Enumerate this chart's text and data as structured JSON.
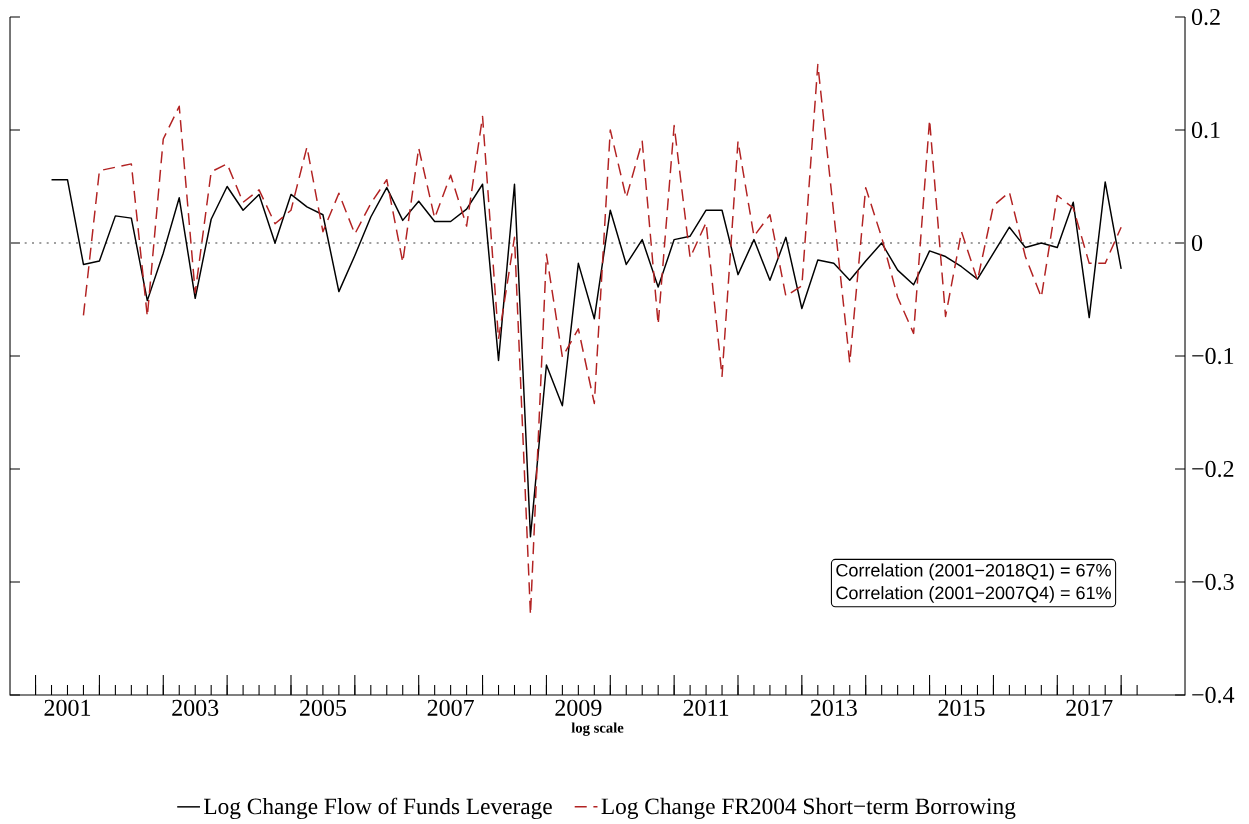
{
  "chart_data": {
    "type": "line",
    "xlabel": "log scale",
    "x": [
      2001.25,
      2001.5,
      2001.75,
      2002.0,
      2002.25,
      2002.5,
      2002.75,
      2003.0,
      2003.25,
      2003.5,
      2003.75,
      2004.0,
      2004.25,
      2004.5,
      2004.75,
      2005.0,
      2005.25,
      2005.5,
      2005.75,
      2006.0,
      2006.25,
      2006.5,
      2006.75,
      2007.0,
      2007.25,
      2007.5,
      2007.75,
      2008.0,
      2008.25,
      2008.5,
      2008.75,
      2009.0,
      2009.25,
      2009.5,
      2009.75,
      2010.0,
      2010.25,
      2010.5,
      2010.75,
      2011.0,
      2011.25,
      2011.5,
      2011.75,
      2012.0,
      2012.25,
      2012.5,
      2012.75,
      2013.0,
      2013.25,
      2013.5,
      2013.75,
      2014.0,
      2014.25,
      2014.5,
      2014.75,
      2015.0,
      2015.25,
      2015.5,
      2015.75,
      2016.0,
      2016.25,
      2016.5,
      2016.75,
      2017.0,
      2017.25,
      2017.5,
      2017.75,
      2018.0
    ],
    "series": [
      {
        "name": "Log Change Flow of Funds Leverage",
        "color": "#000000",
        "line_style": "solid",
        "values": [
          0.056,
          0.056,
          -0.019,
          -0.016,
          0.024,
          0.022,
          -0.051,
          -0.009,
          0.04,
          -0.049,
          0.021,
          0.05,
          0.029,
          0.043,
          0.0,
          0.043,
          0.032,
          0.025,
          -0.043,
          -0.011,
          0.023,
          0.049,
          0.02,
          0.037,
          0.019,
          0.019,
          0.03,
          0.052,
          -0.104,
          0.052,
          -0.26,
          -0.108,
          -0.144,
          -0.018,
          -0.067,
          0.029,
          -0.019,
          0.003,
          -0.039,
          0.003,
          0.006,
          0.029,
          0.029,
          -0.028,
          0.003,
          -0.033,
          0.005,
          -0.058,
          -0.015,
          -0.018,
          -0.033,
          -0.016,
          0.0,
          -0.024,
          -0.037,
          -0.007,
          -0.012,
          -0.021,
          -0.032,
          -0.009,
          0.014,
          -0.004,
          0.0,
          -0.004,
          0.036,
          -0.066,
          0.054,
          -0.023
        ]
      },
      {
        "name": "Log Change FR2004 Short−term Borrowing",
        "color": "#b22222",
        "line_style": "dashed",
        "values": [
          null,
          null,
          -0.064,
          0.064,
          0.067,
          0.07,
          -0.065,
          0.092,
          0.121,
          -0.044,
          0.063,
          0.07,
          0.036,
          0.047,
          0.017,
          0.029,
          0.085,
          0.01,
          0.044,
          0.008,
          0.035,
          0.056,
          -0.017,
          0.084,
          0.022,
          0.06,
          0.015,
          0.112,
          -0.085,
          0.005,
          -0.329,
          -0.01,
          -0.101,
          -0.076,
          -0.142,
          0.1,
          0.04,
          0.09,
          -0.072,
          0.104,
          -0.013,
          0.018,
          -0.118,
          0.09,
          0.006,
          0.025,
          -0.047,
          -0.038,
          0.158,
          0.026,
          -0.106,
          0.049,
          0.005,
          -0.048,
          -0.08,
          0.109,
          -0.065,
          0.01,
          -0.033,
          0.033,
          0.045,
          -0.012,
          -0.048,
          0.042,
          0.031,
          -0.018,
          -0.018,
          0.014
        ]
      }
    ],
    "xlim": [
      2000.6,
      2019.0
    ],
    "xticks": [
      {
        "value": 2001.0,
        "label": null
      },
      {
        "value": 2001.25,
        "label": null
      },
      {
        "value": 2001.5,
        "label": "2001"
      },
      {
        "value": 2001.75,
        "label": null
      },
      {
        "value": 2002.0,
        "label": null
      },
      {
        "value": 2002.25,
        "label": null
      },
      {
        "value": 2002.5,
        "label": null
      },
      {
        "value": 2002.75,
        "label": null
      },
      {
        "value": 2003.0,
        "label": null
      },
      {
        "value": 2003.25,
        "label": null
      },
      {
        "value": 2003.5,
        "label": "2003"
      },
      {
        "value": 2003.75,
        "label": null
      },
      {
        "value": 2004.0,
        "label": null
      },
      {
        "value": 2004.25,
        "label": null
      },
      {
        "value": 2004.5,
        "label": null
      },
      {
        "value": 2004.75,
        "label": null
      },
      {
        "value": 2005.0,
        "label": null
      },
      {
        "value": 2005.25,
        "label": null
      },
      {
        "value": 2005.5,
        "label": "2005"
      },
      {
        "value": 2005.75,
        "label": null
      },
      {
        "value": 2006.0,
        "label": null
      },
      {
        "value": 2006.25,
        "label": null
      },
      {
        "value": 2006.5,
        "label": null
      },
      {
        "value": 2006.75,
        "label": null
      },
      {
        "value": 2007.0,
        "label": null
      },
      {
        "value": 2007.25,
        "label": null
      },
      {
        "value": 2007.5,
        "label": "2007"
      },
      {
        "value": 2007.75,
        "label": null
      },
      {
        "value": 2008.0,
        "label": null
      },
      {
        "value": 2008.25,
        "label": null
      },
      {
        "value": 2008.5,
        "label": null
      },
      {
        "value": 2008.75,
        "label": null
      },
      {
        "value": 2009.0,
        "label": null
      },
      {
        "value": 2009.25,
        "label": null
      },
      {
        "value": 2009.5,
        "label": "2009"
      },
      {
        "value": 2009.75,
        "label": null
      },
      {
        "value": 2010.0,
        "label": null
      },
      {
        "value": 2010.25,
        "label": null
      },
      {
        "value": 2010.5,
        "label": null
      },
      {
        "value": 2010.75,
        "label": null
      },
      {
        "value": 2011.0,
        "label": null
      },
      {
        "value": 2011.25,
        "label": null
      },
      {
        "value": 2011.5,
        "label": "2011"
      },
      {
        "value": 2011.75,
        "label": null
      },
      {
        "value": 2012.0,
        "label": null
      },
      {
        "value": 2012.25,
        "label": null
      },
      {
        "value": 2012.5,
        "label": null
      },
      {
        "value": 2012.75,
        "label": null
      },
      {
        "value": 2013.0,
        "label": null
      },
      {
        "value": 2013.25,
        "label": null
      },
      {
        "value": 2013.5,
        "label": "2013"
      },
      {
        "value": 2013.75,
        "label": null
      },
      {
        "value": 2014.0,
        "label": null
      },
      {
        "value": 2014.25,
        "label": null
      },
      {
        "value": 2014.5,
        "label": null
      },
      {
        "value": 2014.75,
        "label": null
      },
      {
        "value": 2015.0,
        "label": null
      },
      {
        "value": 2015.25,
        "label": null
      },
      {
        "value": 2015.5,
        "label": "2015"
      },
      {
        "value": 2015.75,
        "label": null
      },
      {
        "value": 2016.0,
        "label": null
      },
      {
        "value": 2016.25,
        "label": null
      },
      {
        "value": 2016.5,
        "label": null
      },
      {
        "value": 2016.75,
        "label": null
      },
      {
        "value": 2017.0,
        "label": null
      },
      {
        "value": 2017.25,
        "label": null
      },
      {
        "value": 2017.5,
        "label": "2017"
      },
      {
        "value": 2017.75,
        "label": null
      },
      {
        "value": 2018.0,
        "label": null
      },
      {
        "value": 2018.25,
        "label": null
      }
    ],
    "ylim": [
      -0.4,
      0.2
    ],
    "yticks": [
      {
        "value": -0.4,
        "label": "−0.4"
      },
      {
        "value": -0.3,
        "label": "−0.3"
      },
      {
        "value": -0.2,
        "label": "−0.2"
      },
      {
        "value": -0.1,
        "label": "−0.1"
      },
      {
        "value": 0,
        "label": "0"
      },
      {
        "value": 0.1,
        "label": "0.1"
      },
      {
        "value": 0.2,
        "label": "0.2"
      }
    ],
    "ref_lines": [
      {
        "axis": "y",
        "value": 0,
        "color": "#808080",
        "line_style": "dotted"
      }
    ],
    "annotations": [
      "Correlation (2001−2018Q1) = 67%",
      "Correlation (2001−2007Q4) = 61%"
    ],
    "grid": false,
    "legend": "bottom"
  }
}
